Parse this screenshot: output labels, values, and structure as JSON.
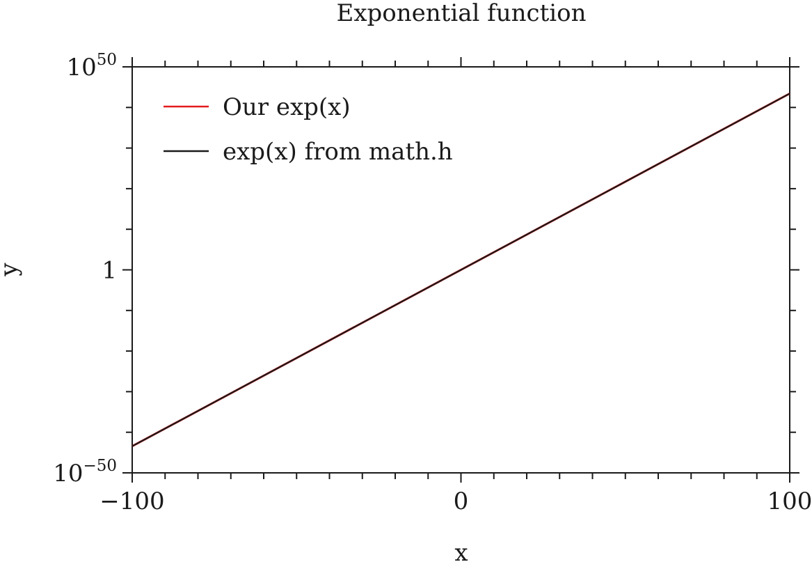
{
  "chart_data": {
    "type": "line",
    "title": "Exponential function",
    "xlabel": "x",
    "ylabel": "y",
    "xlim": [
      -100,
      100
    ],
    "ylim": [
      1e-50,
      1e+50
    ],
    "yscale": "log",
    "x_ticks": [
      {
        "value": -100,
        "label": "−100"
      },
      {
        "value": 0,
        "label": "0"
      },
      {
        "value": 100,
        "label": "100"
      }
    ],
    "y_ticks": [
      {
        "exponent": -50,
        "base": "10",
        "sup": "−50"
      },
      {
        "exponent": 0,
        "base": "1",
        "sup": ""
      },
      {
        "exponent": 50,
        "base": "10",
        "sup": "50"
      }
    ],
    "grid": false,
    "legend_position": "top-left",
    "series": [
      {
        "name": "Our exp(x)",
        "color": "#e41a1c",
        "x": [
          -100,
          100
        ],
        "y": [
          3.72e-44,
          2.69e+43
        ]
      },
      {
        "name": "exp(x) from math.h",
        "color": "#1a1a1a",
        "x": [
          -100,
          100
        ],
        "y": [
          3.72e-44,
          2.69e+43
        ]
      }
    ]
  }
}
